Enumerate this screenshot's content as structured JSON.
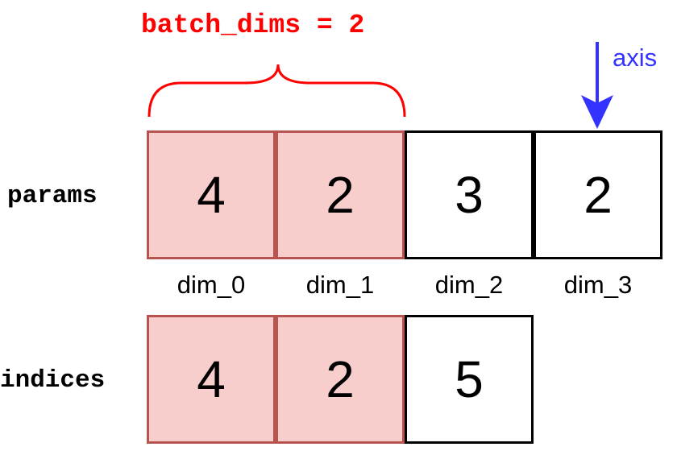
{
  "batch_dims_label": "batch_dims = 2",
  "axis_label": "axis",
  "params": {
    "label": "params",
    "cells": [
      "4",
      "2",
      "3",
      "2"
    ]
  },
  "dims": [
    "dim_0",
    "dim_1",
    "dim_2",
    "dim_3"
  ],
  "indices": {
    "label": "indices",
    "cells": [
      "4",
      "2",
      "5"
    ]
  },
  "colors": {
    "batch_fill": "#f8cecc",
    "batch_border": "#b85450",
    "brace": "#ff0000",
    "axis_arrow": "#3333ff"
  }
}
